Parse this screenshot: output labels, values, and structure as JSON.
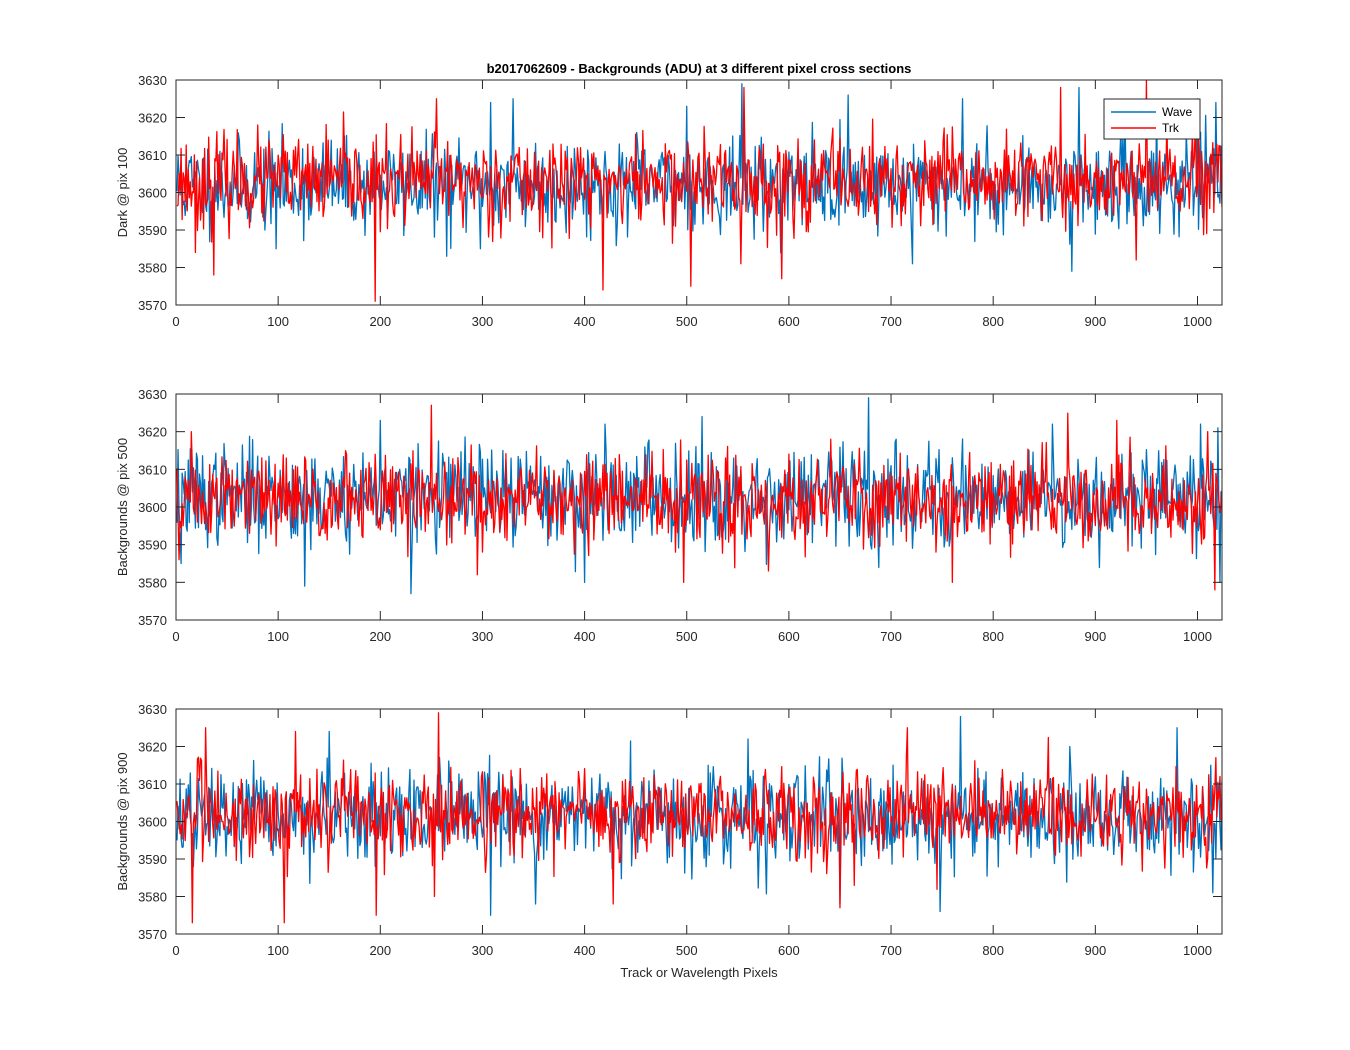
{
  "chart_data": [
    {
      "type": "line",
      "title": "b2017062609 - Backgrounds (ADU) at 3 different pixel cross sections",
      "xlabel": "",
      "ylabel": "Dark @ pix 100",
      "xlim": [
        0,
        1024
      ],
      "ylim": [
        3570,
        3630
      ],
      "xticks": [
        0,
        100,
        200,
        300,
        400,
        500,
        600,
        700,
        800,
        900,
        1000
      ],
      "yticks": [
        3570,
        3580,
        3590,
        3600,
        3610,
        3620,
        3630
      ],
      "legend": {
        "placement": "top-right",
        "entries": [
          "Wave",
          "Trk"
        ]
      },
      "series": [
        {
          "name": "Wave",
          "color": "#0072BD",
          "mean": 3602,
          "sd": 6,
          "seed": 11,
          "spikes": [
            [
              554,
              3629
            ],
            [
              658,
              3626
            ],
            [
              884,
              3628
            ],
            [
              1018,
              3624
            ],
            [
              308,
              3624
            ],
            [
              500,
              3623
            ],
            [
              770,
              3625
            ],
            [
              877,
              3579
            ],
            [
              721,
              3581
            ],
            [
              298,
              3585
            ],
            [
              265,
              3583
            ],
            [
              98,
              3585
            ],
            [
              330,
              3625
            ],
            [
              960,
              3624
            ],
            [
              1000,
              3625
            ]
          ]
        },
        {
          "name": "Trk",
          "color": "#FF0000",
          "mean": 3603,
          "sd": 6,
          "seed": 23,
          "spikes": [
            [
              195,
              3571
            ],
            [
              37,
              3578
            ],
            [
              418,
              3574
            ],
            [
              504,
              3575
            ],
            [
              553,
              3581
            ],
            [
              593,
              3577
            ],
            [
              950,
              3630
            ],
            [
              255,
              3625
            ],
            [
              866,
              3628
            ],
            [
              19,
              3584
            ],
            [
              940,
              3582
            ],
            [
              556,
              3628
            ],
            [
              970,
              3620
            ]
          ]
        }
      ]
    },
    {
      "type": "line",
      "title": "",
      "xlabel": "",
      "ylabel": "Backgrounds @ pix 500",
      "xlim": [
        0,
        1024
      ],
      "ylim": [
        3570,
        3630
      ],
      "xticks": [
        0,
        100,
        200,
        300,
        400,
        500,
        600,
        700,
        800,
        900,
        1000
      ],
      "yticks": [
        3570,
        3580,
        3590,
        3600,
        3610,
        3620,
        3630
      ],
      "series": [
        {
          "name": "Wave",
          "color": "#0072BD",
          "mean": 3603,
          "sd": 6.5,
          "seed": 37,
          "spikes": [
            [
              678,
              3629
            ],
            [
              230,
              3577
            ],
            [
              126,
              3579
            ],
            [
              1020,
              3621
            ],
            [
              1022,
              3580
            ],
            [
              200,
              3623
            ],
            [
              420,
              3622
            ],
            [
              515,
              3624
            ],
            [
              858,
              3622
            ],
            [
              1003,
              3622
            ],
            [
              5,
              3585
            ],
            [
              400,
              3580
            ]
          ]
        },
        {
          "name": "Trk",
          "color": "#FF0000",
          "mean": 3602,
          "sd": 6,
          "seed": 51,
          "spikes": [
            [
              250,
              3627
            ],
            [
              497,
              3580
            ],
            [
              760,
              3580
            ],
            [
              921,
              3623
            ],
            [
              1017,
              3578
            ],
            [
              1010,
              3620
            ],
            [
              15,
              3620
            ],
            [
              3,
              3586
            ],
            [
              295,
              3582
            ],
            [
              580,
              3583
            ]
          ]
        }
      ]
    },
    {
      "type": "line",
      "title": "",
      "xlabel": "Track or Wavelength Pixels",
      "ylabel": "Backgrounds @ pix 900",
      "xlim": [
        0,
        1024
      ],
      "ylim": [
        3570,
        3630
      ],
      "xticks": [
        0,
        100,
        200,
        300,
        400,
        500,
        600,
        700,
        800,
        900,
        1000
      ],
      "yticks": [
        3570,
        3580,
        3590,
        3600,
        3610,
        3620,
        3630
      ],
      "series": [
        {
          "name": "Wave",
          "color": "#0072BD",
          "mean": 3601,
          "sd": 6,
          "seed": 67,
          "spikes": [
            [
              308,
              3575
            ],
            [
              748,
              3576
            ],
            [
              768,
              3628
            ],
            [
              650,
              3578
            ],
            [
              17,
              3588
            ],
            [
              150,
              3624
            ],
            [
              1015,
              3581
            ],
            [
              560,
              3622
            ],
            [
              875,
              3620
            ],
            [
              352,
              3578
            ],
            [
              980,
              3625
            ]
          ]
        },
        {
          "name": "Trk",
          "color": "#FF0000",
          "mean": 3602,
          "sd": 6,
          "seed": 83,
          "spikes": [
            [
              257,
              3629
            ],
            [
              16,
              3573
            ],
            [
              106,
              3573
            ],
            [
              650,
              3577
            ],
            [
              716,
              3625
            ],
            [
              29,
              3625
            ],
            [
              117,
              3624
            ],
            [
              253,
              3580
            ],
            [
              196,
              3575
            ],
            [
              428,
              3578
            ],
            [
              1022,
              3612
            ]
          ]
        }
      ]
    }
  ]
}
